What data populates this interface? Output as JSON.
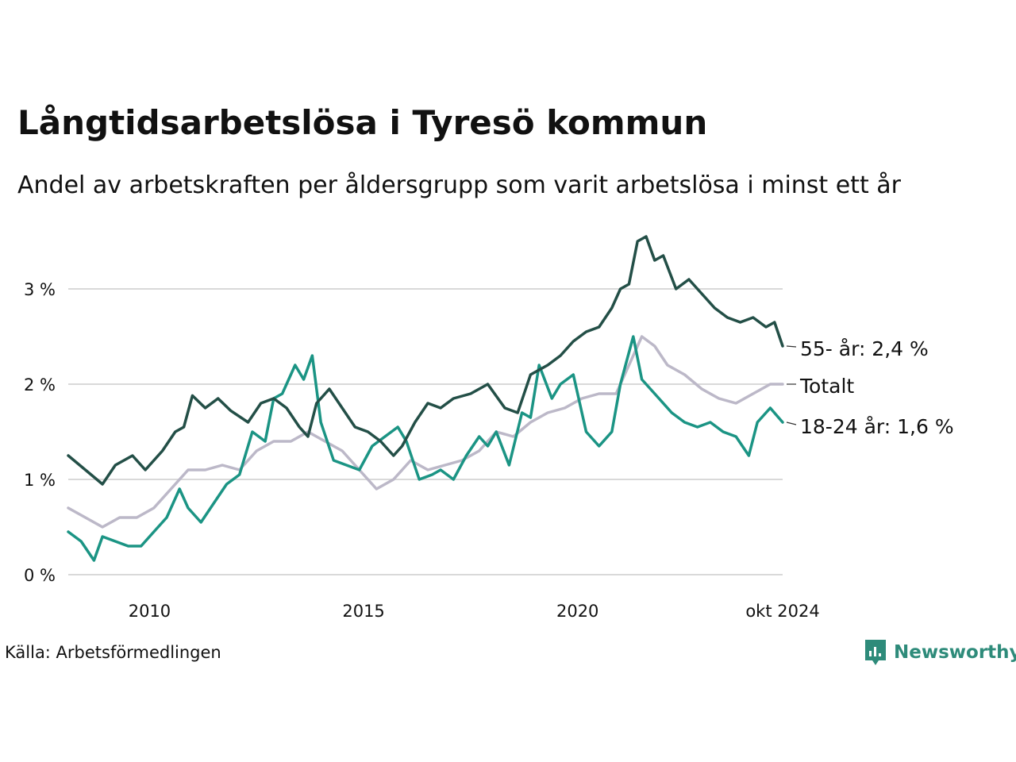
{
  "title": "Långtidsarbetslösa i Tyresö kommun",
  "subtitle": "Andel av arbetskraften per åldersgrupp som varit arbetslösa i minst ett år",
  "source": "Källa: Arbetsförmedlingen",
  "brand": "Newsworthy",
  "colors": {
    "s55": "#234f47",
    "total": "#bcb8c8",
    "youth": "#1b9484",
    "grid": "#d9d9d9",
    "brand": "#2e8b7a"
  },
  "chart_data": {
    "type": "line",
    "title": "Långtidsarbetslösa i Tyresö kommun",
    "subtitle": "Andel av arbetskraften per åldersgrupp som varit arbetslösa i minst ett år",
    "xlabel": "",
    "ylabel": "",
    "ylim": [
      0,
      3.6
    ],
    "xlim": [
      2008.1,
      2024.79
    ],
    "yticks": [
      {
        "value": 0,
        "label": "0 %"
      },
      {
        "value": 1,
        "label": "1 %"
      },
      {
        "value": 2,
        "label": "2 %"
      },
      {
        "value": 3,
        "label": "3 %"
      }
    ],
    "xticks": [
      {
        "value": 2010,
        "label": "2010"
      },
      {
        "value": 2015,
        "label": "2015"
      },
      {
        "value": 2020,
        "label": "2020"
      },
      {
        "value": 2024.79,
        "label": "okt 2024"
      }
    ],
    "grid": true,
    "series": [
      {
        "name": "55- år",
        "label": "55- år: 2,4 %",
        "color": "#234f47",
        "x": [
          2008.1,
          2008.5,
          2008.9,
          2009.2,
          2009.6,
          2009.9,
          2010.3,
          2010.6,
          2010.8,
          2011.0,
          2011.3,
          2011.6,
          2011.9,
          2012.3,
          2012.6,
          2012.9,
          2013.2,
          2013.5,
          2013.7,
          2013.9,
          2014.2,
          2014.5,
          2014.8,
          2015.1,
          2015.4,
          2015.7,
          2015.9,
          2016.2,
          2016.5,
          2016.8,
          2017.1,
          2017.5,
          2017.9,
          2018.3,
          2018.6,
          2018.9,
          2019.3,
          2019.6,
          2019.9,
          2020.2,
          2020.5,
          2020.8,
          2021.0,
          2021.2,
          2021.4,
          2021.6,
          2021.8,
          2022.0,
          2022.3,
          2022.6,
          2022.9,
          2023.2,
          2023.5,
          2023.8,
          2024.1,
          2024.4,
          2024.6,
          2024.79
        ],
        "y": [
          1.25,
          1.1,
          0.95,
          1.15,
          1.25,
          1.1,
          1.3,
          1.5,
          1.55,
          1.88,
          1.75,
          1.85,
          1.72,
          1.6,
          1.8,
          1.85,
          1.75,
          1.55,
          1.45,
          1.8,
          1.95,
          1.75,
          1.55,
          1.5,
          1.4,
          1.25,
          1.35,
          1.6,
          1.8,
          1.75,
          1.85,
          1.9,
          2.0,
          1.75,
          1.7,
          2.1,
          2.2,
          2.3,
          2.45,
          2.55,
          2.6,
          2.8,
          3.0,
          3.05,
          3.5,
          3.55,
          3.3,
          3.35,
          3.0,
          3.1,
          2.95,
          2.8,
          2.7,
          2.65,
          2.7,
          2.6,
          2.65,
          2.4
        ]
      },
      {
        "name": "Totalt",
        "label": "Totalt",
        "color": "#bcb8c8",
        "x": [
          2008.1,
          2008.5,
          2008.9,
          2009.3,
          2009.7,
          2010.1,
          2010.5,
          2010.9,
          2011.3,
          2011.7,
          2012.1,
          2012.5,
          2012.9,
          2013.3,
          2013.7,
          2014.1,
          2014.5,
          2014.9,
          2015.3,
          2015.7,
          2016.1,
          2016.5,
          2016.9,
          2017.3,
          2017.7,
          2018.1,
          2018.5,
          2018.9,
          2019.3,
          2019.7,
          2020.1,
          2020.5,
          2020.9,
          2021.2,
          2021.5,
          2021.8,
          2022.1,
          2022.5,
          2022.9,
          2023.3,
          2023.7,
          2024.1,
          2024.5,
          2024.79
        ],
        "y": [
          0.7,
          0.6,
          0.5,
          0.6,
          0.6,
          0.7,
          0.9,
          1.1,
          1.1,
          1.15,
          1.1,
          1.3,
          1.4,
          1.4,
          1.5,
          1.4,
          1.3,
          1.1,
          0.9,
          1.0,
          1.2,
          1.1,
          1.15,
          1.2,
          1.3,
          1.5,
          1.45,
          1.6,
          1.7,
          1.75,
          1.85,
          1.9,
          1.9,
          2.2,
          2.5,
          2.4,
          2.2,
          2.1,
          1.95,
          1.85,
          1.8,
          1.9,
          2.0,
          2.0
        ]
      },
      {
        "name": "18-24 år",
        "label": "18-24 år: 1,6 %",
        "color": "#1b9484",
        "x": [
          2008.1,
          2008.4,
          2008.7,
          2008.9,
          2009.2,
          2009.5,
          2009.8,
          2010.1,
          2010.4,
          2010.7,
          2010.9,
          2011.2,
          2011.5,
          2011.8,
          2012.1,
          2012.4,
          2012.7,
          2012.9,
          2013.1,
          2013.4,
          2013.6,
          2013.8,
          2014.0,
          2014.3,
          2014.6,
          2014.9,
          2015.2,
          2015.5,
          2015.8,
          2016.0,
          2016.3,
          2016.6,
          2016.8,
          2017.1,
          2017.4,
          2017.7,
          2017.9,
          2018.1,
          2018.4,
          2018.7,
          2018.9,
          2019.1,
          2019.4,
          2019.6,
          2019.9,
          2020.2,
          2020.5,
          2020.8,
          2021.0,
          2021.3,
          2021.5,
          2021.7,
          2021.9,
          2022.2,
          2022.5,
          2022.8,
          2023.1,
          2023.4,
          2023.7,
          2024.0,
          2024.2,
          2024.5,
          2024.79
        ],
        "y": [
          0.45,
          0.35,
          0.15,
          0.4,
          0.35,
          0.3,
          0.3,
          0.45,
          0.6,
          0.9,
          0.7,
          0.55,
          0.75,
          0.95,
          1.05,
          1.5,
          1.4,
          1.85,
          1.9,
          2.2,
          2.05,
          2.3,
          1.6,
          1.2,
          1.15,
          1.1,
          1.35,
          1.45,
          1.55,
          1.4,
          1.0,
          1.05,
          1.1,
          1.0,
          1.25,
          1.45,
          1.35,
          1.5,
          1.15,
          1.7,
          1.65,
          2.2,
          1.85,
          2.0,
          2.1,
          1.5,
          1.35,
          1.5,
          2.0,
          2.5,
          2.05,
          1.95,
          1.85,
          1.7,
          1.6,
          1.55,
          1.6,
          1.5,
          1.45,
          1.25,
          1.6,
          1.75,
          1.6
        ]
      }
    ]
  }
}
